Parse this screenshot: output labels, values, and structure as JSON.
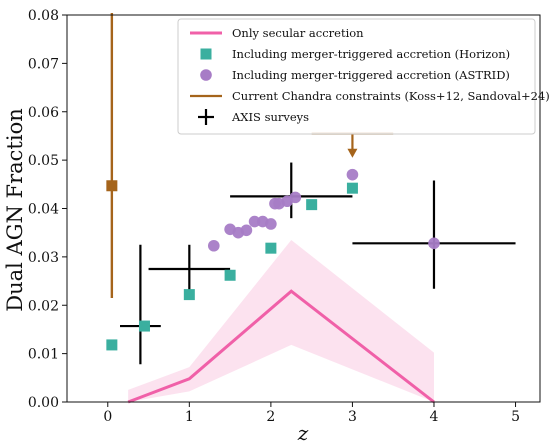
{
  "chart_data": {
    "type": "scatter",
    "xlabel": "z",
    "ylabel": "Dual AGN Fraction",
    "xlim": [
      -0.5,
      5.3
    ],
    "ylim": [
      0,
      0.08
    ],
    "x_ticks": [
      "0",
      "1",
      "2",
      "3",
      "4",
      "5"
    ],
    "y_ticks": [
      "0.00",
      "0.01",
      "0.02",
      "0.03",
      "0.04",
      "0.05",
      "0.06",
      "0.07",
      "0.08"
    ],
    "legend_position": "top-right",
    "colors": {
      "secular": "#f060a8",
      "secular_band": "#fbd6e8",
      "horizon": "#3aaf9f",
      "astrid": "#a77cc6",
      "chandra": "#a5641b",
      "axis_survey": "#000000"
    },
    "series": [
      {
        "name": "Only secular accretion",
        "kind": "line-with-band",
        "points": [
          {
            "x": 0.25,
            "y": 0.0,
            "lo": 0.0,
            "hi": 0.0025
          },
          {
            "x": 1.0,
            "y": 0.0048,
            "lo": 0.0022,
            "hi": 0.0072
          },
          {
            "x": 2.25,
            "y": 0.0229,
            "lo": 0.0118,
            "hi": 0.0335
          },
          {
            "x": 4.0,
            "y": 0.0,
            "lo": 0.0,
            "hi": 0.0102
          }
        ]
      },
      {
        "name": "Including merger-triggered accretion (Horizon)",
        "kind": "square",
        "points": [
          {
            "x": 0.05,
            "y": 0.0118
          },
          {
            "x": 0.45,
            "y": 0.0157
          },
          {
            "x": 1.0,
            "y": 0.0222
          },
          {
            "x": 1.5,
            "y": 0.0262
          },
          {
            "x": 2.0,
            "y": 0.0318
          },
          {
            "x": 2.5,
            "y": 0.0408
          },
          {
            "x": 3.0,
            "y": 0.0442
          }
        ]
      },
      {
        "name": "Including merger-triggered accretion (ASTRID)",
        "kind": "circle",
        "points": [
          {
            "x": 1.3,
            "y": 0.0323
          },
          {
            "x": 1.5,
            "y": 0.0357
          },
          {
            "x": 1.6,
            "y": 0.035
          },
          {
            "x": 1.7,
            "y": 0.0355
          },
          {
            "x": 1.8,
            "y": 0.0373
          },
          {
            "x": 1.9,
            "y": 0.0373
          },
          {
            "x": 2.0,
            "y": 0.0368
          },
          {
            "x": 2.05,
            "y": 0.041
          },
          {
            "x": 2.1,
            "y": 0.041
          },
          {
            "x": 2.2,
            "y": 0.0415
          },
          {
            "x": 2.3,
            "y": 0.0423
          },
          {
            "x": 3.0,
            "y": 0.047
          },
          {
            "x": 4.0,
            "y": 0.0328
          }
        ]
      },
      {
        "name": "Current Chandra constraints (Koss+12, Sandoval+24)",
        "kind": "constraint",
        "points": [
          {
            "x": 0.05,
            "y": 0.0447,
            "y_lo": 0.0215,
            "y_hi": 0.08,
            "type": "range"
          },
          {
            "x": 3.0,
            "y": 0.0555,
            "x_lo": 2.5,
            "x_hi": 3.5,
            "y_arrow_end": 0.0505,
            "type": "upper-limit"
          }
        ]
      },
      {
        "name": "AXIS surveys",
        "kind": "crosshair",
        "points": [
          {
            "x": 0.4,
            "y": 0.0157,
            "x_lo": 0.15,
            "x_hi": 0.65,
            "y_lo": 0.0078,
            "y_hi": 0.0325
          },
          {
            "x": 1.0,
            "y": 0.0275,
            "x_lo": 0.5,
            "x_hi": 1.5,
            "y_lo": 0.0225,
            "y_hi": 0.0325
          },
          {
            "x": 2.25,
            "y": 0.0425,
            "x_lo": 1.5,
            "x_hi": 3.0,
            "y_lo": 0.038,
            "y_hi": 0.0495
          },
          {
            "x": 4.0,
            "y": 0.0328,
            "x_lo": 3.0,
            "x_hi": 5.0,
            "y_lo": 0.0234,
            "y_hi": 0.0458
          }
        ]
      }
    ]
  }
}
